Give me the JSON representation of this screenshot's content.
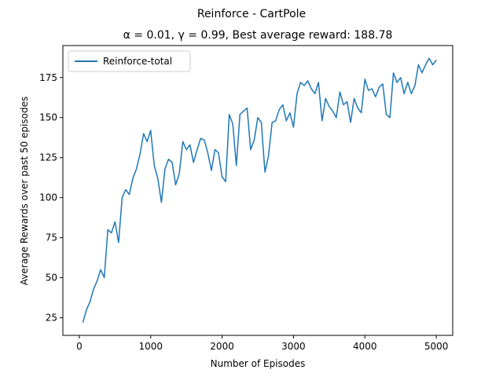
{
  "chart_data": {
    "type": "line",
    "title": "Reinforce - CartPole",
    "subtitle": "α = 0.01, γ = 0.99,  Best average reward: 188.78",
    "xlabel": "Number of Episodes",
    "ylabel": "Average Rewards over past 50 episodes",
    "xlim": [
      -230,
      5230
    ],
    "ylim": [
      14,
      195
    ],
    "xticks": [
      0,
      1000,
      2000,
      3000,
      4000,
      5000
    ],
    "yticks": [
      25,
      50,
      75,
      100,
      125,
      150,
      175
    ],
    "grid": false,
    "legend_position": "top-left",
    "series": [
      {
        "name": "Reinforce-total",
        "color": "#1f77b4",
        "x": [
          50,
          100,
          150,
          200,
          250,
          300,
          350,
          400,
          450,
          500,
          550,
          600,
          650,
          700,
          750,
          800,
          850,
          900,
          950,
          1000,
          1050,
          1100,
          1150,
          1200,
          1250,
          1300,
          1350,
          1400,
          1450,
          1500,
          1550,
          1600,
          1650,
          1700,
          1750,
          1800,
          1850,
          1900,
          1950,
          2000,
          2050,
          2100,
          2150,
          2200,
          2250,
          2300,
          2350,
          2400,
          2450,
          2500,
          2550,
          2600,
          2650,
          2700,
          2750,
          2800,
          2850,
          2900,
          2950,
          3000,
          3050,
          3100,
          3150,
          3200,
          3250,
          3300,
          3350,
          3400,
          3450,
          3500,
          3550,
          3600,
          3650,
          3700,
          3750,
          3800,
          3850,
          3900,
          3950,
          4000,
          4050,
          4100,
          4150,
          4200,
          4250,
          4300,
          4350,
          4400,
          4450,
          4500,
          4550,
          4600,
          4650,
          4700,
          4750,
          4800,
          4850,
          4900,
          4950,
          5000
        ],
        "values": [
          22,
          30,
          35,
          43,
          48,
          55,
          50,
          80,
          78,
          85,
          72,
          100,
          105,
          102,
          112,
          118,
          127,
          140,
          135,
          142,
          120,
          112,
          97,
          118,
          124,
          122,
          108,
          115,
          135,
          130,
          133,
          122,
          130,
          137,
          136,
          128,
          117,
          130,
          128,
          113,
          110,
          152,
          146,
          120,
          152,
          154,
          156,
          130,
          136,
          150,
          147,
          116,
          126,
          147,
          148,
          155,
          158,
          148,
          153,
          144,
          165,
          172,
          170,
          173,
          168,
          165,
          172,
          148,
          162,
          157,
          154,
          150,
          166,
          158,
          160,
          147,
          162,
          156,
          153,
          174,
          167,
          168,
          163,
          169,
          171,
          152,
          150,
          178,
          172,
          175,
          165,
          172,
          165,
          170,
          183,
          178,
          183,
          187,
          183,
          186
        ]
      }
    ]
  }
}
